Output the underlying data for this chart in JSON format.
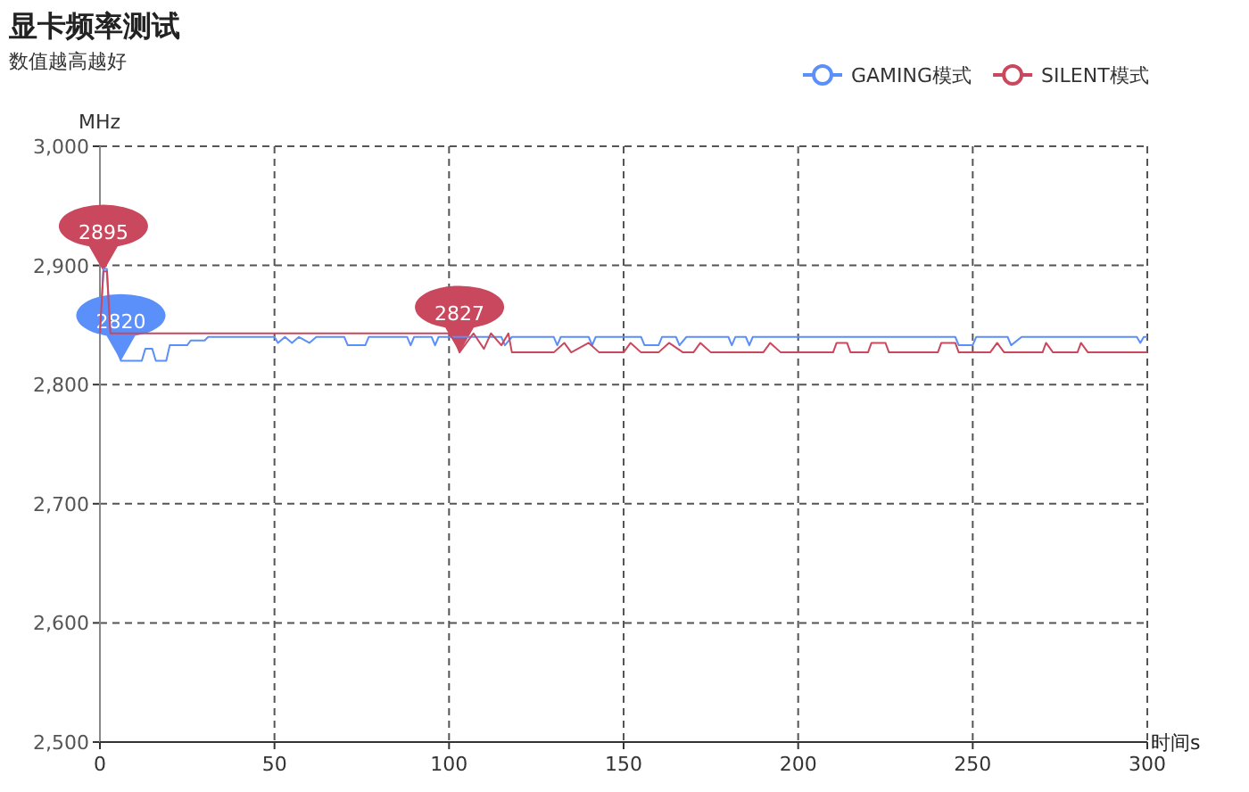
{
  "chart_data": {
    "type": "line",
    "title": "显卡频率测试",
    "subtitle": "数值越高越好",
    "xlabel": "时间s",
    "ylabel": "MHz",
    "xlim": [
      0,
      300
    ],
    "xticks": [
      0,
      50,
      100,
      150,
      200,
      250,
      300
    ],
    "ylim": [
      2500,
      3000
    ],
    "yticks": [
      {
        "value": 2500,
        "label": "2,500"
      },
      {
        "value": 2600,
        "label": "2,600"
      },
      {
        "value": 2700,
        "label": "2,700"
      },
      {
        "value": 2800,
        "label": "2,800"
      },
      {
        "value": 2900,
        "label": "2,900"
      },
      {
        "value": 3000,
        "label": "3,000"
      }
    ],
    "grid": true,
    "legend": "top right",
    "line_style": "solid",
    "series": [
      {
        "name": "GAMING模式",
        "color": "#5b8ff9",
        "x": [
          0,
          1,
          2,
          3,
          4,
          6,
          12,
          13,
          15,
          16,
          19,
          20,
          25,
          26,
          30,
          31,
          50,
          51,
          53,
          55,
          57,
          60,
          62,
          70,
          71,
          76,
          77,
          88,
          89,
          90,
          95,
          96,
          97,
          115,
          116,
          118,
          130,
          131,
          132,
          140,
          141,
          142,
          155,
          156,
          160,
          161,
          165,
          166,
          168,
          180,
          181,
          182,
          185,
          186,
          187,
          245,
          246,
          250,
          251,
          260,
          261,
          264,
          297,
          298,
          299,
          300
        ],
        "values": [
          2845,
          2897,
          2897,
          2845,
          2835,
          2820,
          2820,
          2830,
          2830,
          2820,
          2820,
          2833,
          2833,
          2837,
          2837,
          2840,
          2840,
          2835,
          2840,
          2835,
          2840,
          2835,
          2840,
          2840,
          2833,
          2833,
          2840,
          2840,
          2833,
          2840,
          2840,
          2833,
          2840,
          2840,
          2833,
          2840,
          2840,
          2833,
          2840,
          2840,
          2833,
          2840,
          2840,
          2833,
          2833,
          2840,
          2840,
          2833,
          2840,
          2840,
          2833,
          2840,
          2840,
          2833,
          2840,
          2840,
          2833,
          2833,
          2840,
          2840,
          2833,
          2840,
          2840,
          2835,
          2840,
          2840
        ]
      },
      {
        "name": "SILENT模式",
        "color": "#c9485e",
        "x": [
          0,
          1,
          2,
          3,
          100,
          102,
          103,
          105,
          107,
          110,
          112,
          115,
          117,
          118,
          125,
          130,
          133,
          135,
          140,
          143,
          150,
          152,
          155,
          160,
          163,
          167,
          170,
          172,
          175,
          190,
          192,
          195,
          200,
          210,
          211,
          214,
          215,
          220,
          221,
          225,
          226,
          240,
          241,
          245,
          246,
          255,
          257,
          259,
          270,
          271,
          273,
          280,
          281,
          283,
          300
        ],
        "values": [
          2843,
          2895,
          2895,
          2843,
          2843,
          2835,
          2827,
          2835,
          2843,
          2830,
          2843,
          2833,
          2843,
          2827,
          2827,
          2827,
          2835,
          2827,
          2835,
          2827,
          2827,
          2835,
          2827,
          2827,
          2835,
          2827,
          2827,
          2835,
          2827,
          2827,
          2835,
          2827,
          2827,
          2827,
          2835,
          2835,
          2827,
          2827,
          2835,
          2835,
          2827,
          2827,
          2835,
          2835,
          2827,
          2827,
          2835,
          2827,
          2827,
          2835,
          2827,
          2827,
          2835,
          2827,
          2827
        ]
      }
    ],
    "annotations": [
      {
        "text": "2895",
        "x": 1,
        "y": 2895
      },
      {
        "text": "2820",
        "x": 6,
        "y": 2820
      },
      {
        "text": "2827",
        "x": 103,
        "y": 2827
      }
    ]
  }
}
